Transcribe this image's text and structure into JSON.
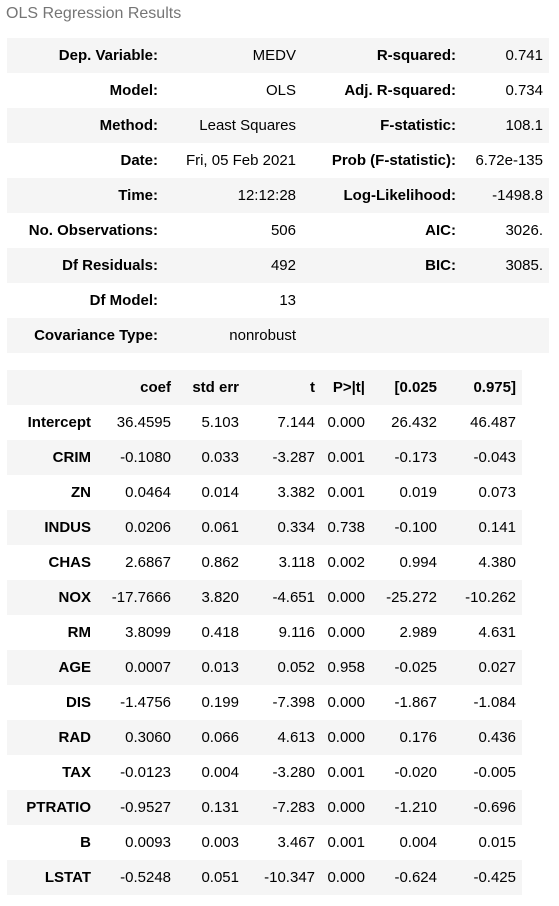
{
  "caption": "OLS Regression Results",
  "summary": [
    {
      "k1": "Dep. Variable:",
      "v1": "MEDV",
      "k2": "R-squared:",
      "v2": "0.741"
    },
    {
      "k1": "Model:",
      "v1": "OLS",
      "k2": "Adj. R-squared:",
      "v2": "0.734"
    },
    {
      "k1": "Method:",
      "v1": "Least Squares",
      "k2": "F-statistic:",
      "v2": "108.1"
    },
    {
      "k1": "Date:",
      "v1": "Fri, 05 Feb 2021",
      "k2": "Prob (F-statistic):",
      "v2": "6.72e-135"
    },
    {
      "k1": "Time:",
      "v1": "12:12:28",
      "k2": "Log-Likelihood:",
      "v2": "-1498.8"
    },
    {
      "k1": "No. Observations:",
      "v1": "506",
      "k2": "AIC:",
      "v2": "3026."
    },
    {
      "k1": "Df Residuals:",
      "v1": "492",
      "k2": "BIC:",
      "v2": "3085."
    },
    {
      "k1": "Df Model:",
      "v1": "13",
      "k2": "",
      "v2": ""
    },
    {
      "k1": "Covariance Type:",
      "v1": "nonrobust",
      "k2": "",
      "v2": ""
    }
  ],
  "coef_table": {
    "headers": [
      "",
      "coef",
      "std err",
      "t",
      "P>|t|",
      "[0.025",
      "0.975]"
    ],
    "rows": [
      [
        "Intercept",
        "36.4595",
        "5.103",
        "7.144",
        "0.000",
        "26.432",
        "46.487"
      ],
      [
        "CRIM",
        "-0.1080",
        "0.033",
        "-3.287",
        "0.001",
        "-0.173",
        "-0.043"
      ],
      [
        "ZN",
        "0.0464",
        "0.014",
        "3.382",
        "0.001",
        "0.019",
        "0.073"
      ],
      [
        "INDUS",
        "0.0206",
        "0.061",
        "0.334",
        "0.738",
        "-0.100",
        "0.141"
      ],
      [
        "CHAS",
        "2.6867",
        "0.862",
        "3.118",
        "0.002",
        "0.994",
        "4.380"
      ],
      [
        "NOX",
        "-17.7666",
        "3.820",
        "-4.651",
        "0.000",
        "-25.272",
        "-10.262"
      ],
      [
        "RM",
        "3.8099",
        "0.418",
        "9.116",
        "0.000",
        "2.989",
        "4.631"
      ],
      [
        "AGE",
        "0.0007",
        "0.013",
        "0.052",
        "0.958",
        "-0.025",
        "0.027"
      ],
      [
        "DIS",
        "-1.4756",
        "0.199",
        "-7.398",
        "0.000",
        "-1.867",
        "-1.084"
      ],
      [
        "RAD",
        "0.3060",
        "0.066",
        "4.613",
        "0.000",
        "0.176",
        "0.436"
      ],
      [
        "TAX",
        "-0.0123",
        "0.004",
        "-3.280",
        "0.001",
        "-0.020",
        "-0.005"
      ],
      [
        "PTRATIO",
        "-0.9527",
        "0.131",
        "-7.283",
        "0.000",
        "-1.210",
        "-0.696"
      ],
      [
        "B",
        "0.0093",
        "0.003",
        "3.467",
        "0.001",
        "0.004",
        "0.015"
      ],
      [
        "LSTAT",
        "-0.5248",
        "0.051",
        "-10.347",
        "0.000",
        "-0.624",
        "-0.425"
      ]
    ]
  }
}
